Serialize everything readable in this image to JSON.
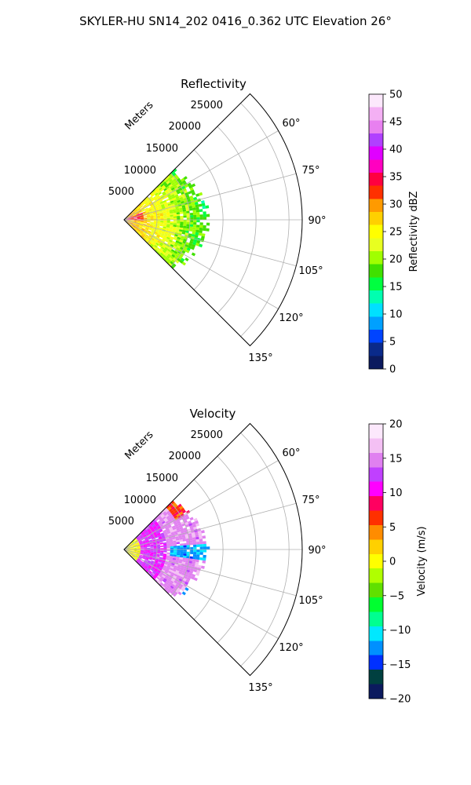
{
  "suptitle": "SKYLER-HU  SN14_202  0416_0.362 UTC Elevation 26°",
  "chart_data": [
    {
      "type": "heatmap",
      "projection": "polar sector",
      "title": "Reflectivity",
      "radial_label": "Meters",
      "radial_ticks": [
        "5000",
        "10000",
        "15000",
        "20000",
        "25000"
      ],
      "radial_values": [
        5000,
        10000,
        15000,
        20000,
        25000
      ],
      "rlim": [
        0,
        27000
      ],
      "angle_ticks": [
        "60°",
        "75°",
        "90°",
        "105°",
        "120°",
        "135°"
      ],
      "angle_values": [
        60,
        75,
        90,
        105,
        120,
        135
      ],
      "thetalim": [
        45,
        135
      ],
      "grid": true,
      "echo_extent_m": 13000,
      "colorbar": {
        "label": "Reflectivity dBZ",
        "range": [
          0,
          50
        ],
        "ticks": [
          "0",
          "5",
          "10",
          "15",
          "20",
          "25",
          "30",
          "35",
          "40",
          "45",
          "50"
        ],
        "tick_values": [
          0,
          5,
          10,
          15,
          20,
          25,
          30,
          35,
          40,
          45,
          50
        ],
        "colors": [
          "#0b1a5e",
          "#0a2a8a",
          "#0044ff",
          "#00a0ff",
          "#00e0ff",
          "#00ffb0",
          "#00ff40",
          "#40e000",
          "#a0ff00",
          "#e8ff20",
          "#ffff00",
          "#ffd000",
          "#ff9a00",
          "#ff3000",
          "#ff0040",
          "#ff00c0",
          "#e000ff",
          "#b040ff",
          "#e880f0",
          "#f4b0f4",
          "#fce8fc"
        ]
      }
    },
    {
      "type": "heatmap",
      "projection": "polar sector",
      "title": "Velocity",
      "radial_label": "Meters",
      "radial_ticks": [
        "5000",
        "10000",
        "15000",
        "20000",
        "25000"
      ],
      "radial_values": [
        5000,
        10000,
        15000,
        20000,
        25000
      ],
      "rlim": [
        0,
        27000
      ],
      "angle_ticks": [
        "60°",
        "75°",
        "90°",
        "105°",
        "120°",
        "135°"
      ],
      "angle_values": [
        60,
        75,
        90,
        105,
        120,
        135
      ],
      "thetalim": [
        45,
        135
      ],
      "grid": true,
      "echo_extent_m": 13000,
      "colorbar": {
        "label": "Velocity (m/s)",
        "range": [
          -20,
          20
        ],
        "ticks": [
          "−20",
          "−15",
          "−10",
          "−5",
          "0",
          "5",
          "10",
          "15",
          "20"
        ],
        "tick_values": [
          -20,
          -15,
          -10,
          -5,
          0,
          5,
          10,
          15,
          20
        ],
        "colors": [
          "#0b1a5e",
          "#004040",
          "#0030ff",
          "#0090ff",
          "#00e8ff",
          "#00ff90",
          "#00ff30",
          "#60e000",
          "#b0ff00",
          "#ffff00",
          "#ffd000",
          "#ff8c00",
          "#ff3000",
          "#ff0060",
          "#ff00ff",
          "#c040ff",
          "#e080f0",
          "#f4c0f4",
          "#fce8fc"
        ]
      }
    }
  ]
}
